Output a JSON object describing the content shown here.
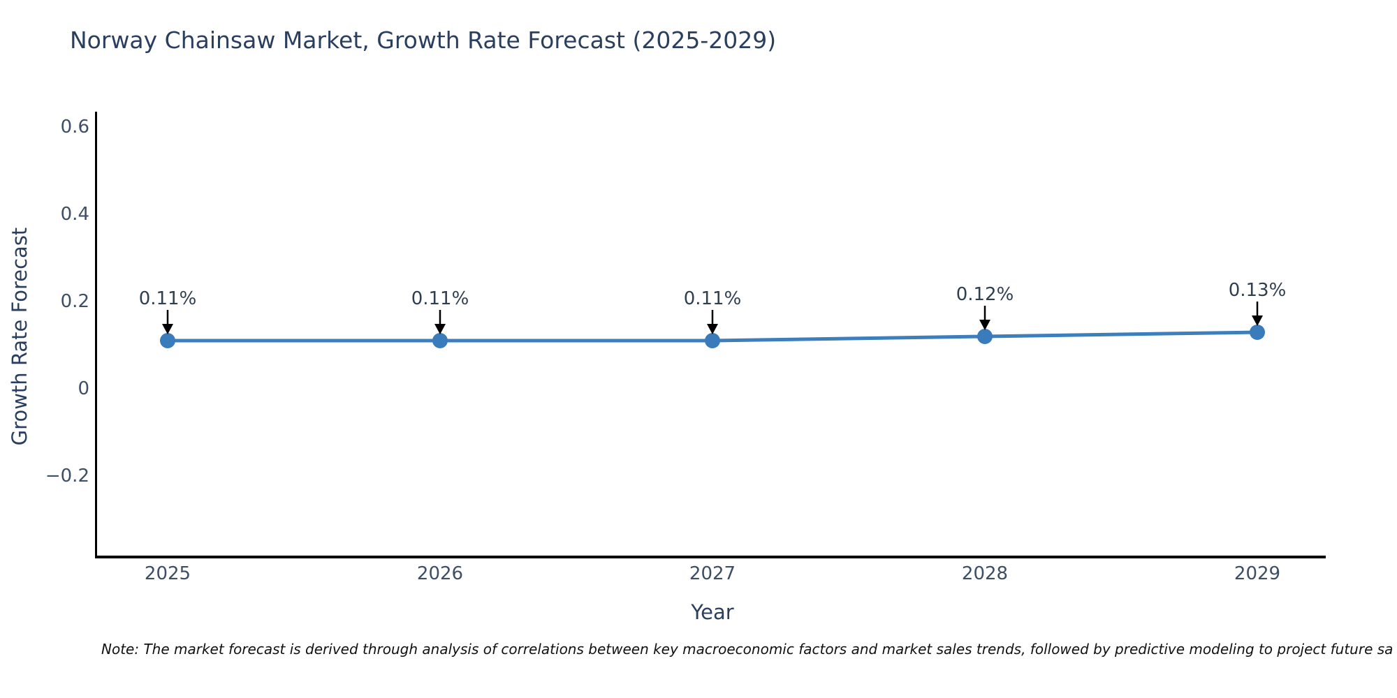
{
  "title": "Norway Chainsaw Market, Growth Rate Forecast (2025-2029)",
  "note": "Note: The market forecast is derived through analysis of correlations between key macroeconomic factors and market sales trends, followed by predictive modeling to project future sa",
  "chart_data": {
    "type": "line",
    "title": "Norway Chainsaw Market, Growth Rate Forecast (2025-2029)",
    "xlabel": "Year",
    "ylabel": "Growth Rate Forecast",
    "x": [
      2025,
      2026,
      2027,
      2028,
      2029
    ],
    "xtick_labels": [
      "2025",
      "2026",
      "2027",
      "2028",
      "2029"
    ],
    "series": [
      {
        "name": "Growth Rate Forecast",
        "values": [
          0.11,
          0.11,
          0.11,
          0.12,
          0.13
        ],
        "point_labels": [
          "0.11%",
          "0.11%",
          "0.11%",
          "0.12%",
          "0.13%"
        ]
      }
    ],
    "yticks": [
      0.6,
      0.4,
      0.2,
      0,
      -0.2
    ],
    "ytick_labels": [
      "0.6",
      "0.4",
      "0.2",
      "0",
      "−0.2"
    ],
    "ylim": [
      -0.39,
      0.63
    ],
    "grid": false,
    "legend": false,
    "line_color": "#3d7ebd",
    "marker_color": "#3a7cbb",
    "arrow_color": "#000000"
  },
  "colors": {
    "accent_line": "#3d7ebd",
    "title_text": "#2a3f5f",
    "tick_text": "#3c4f66",
    "spine": "#000000",
    "background": "#ffffff"
  }
}
